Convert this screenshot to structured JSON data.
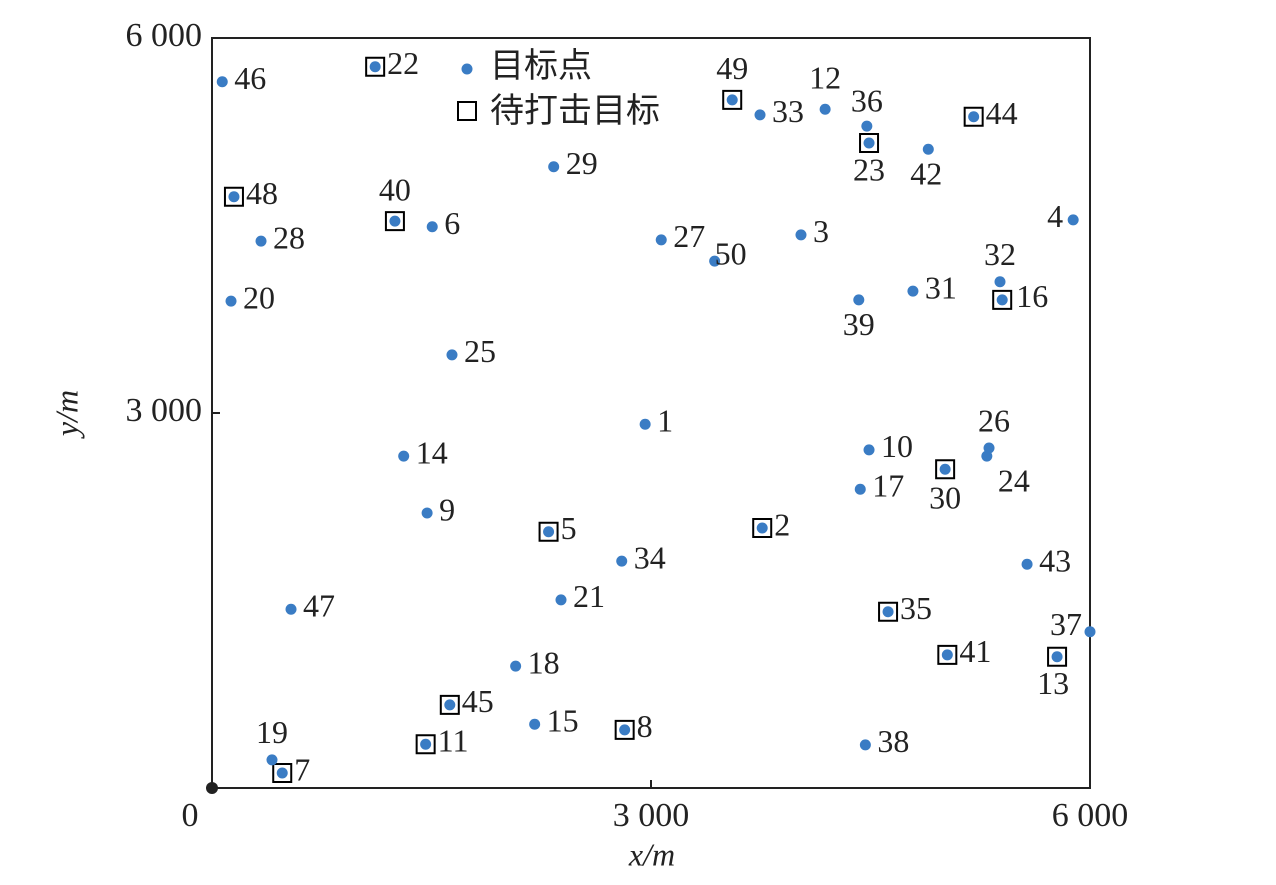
{
  "chart_data": {
    "type": "scatter",
    "xlabel": "x/m",
    "ylabel": "y/m",
    "xlim": [
      0,
      6000
    ],
    "ylim": [
      0,
      6000
    ],
    "xticks": [
      0,
      {
        "value": 3000,
        "label": "3 000"
      },
      {
        "value": 6000,
        "label": "6 000"
      }
    ],
    "yticks": [
      {
        "value": 3000,
        "label": "3 000"
      },
      {
        "value": 6000,
        "label": "6 000"
      }
    ],
    "grid": false,
    "legend": "top",
    "series": [
      {
        "name": "目标点",
        "color": "#3a7cc4",
        "marker": "dot",
        "labels": [
          "1",
          "2",
          "3",
          "4",
          "5",
          "6",
          "7",
          "8",
          "9",
          "10",
          "11",
          "12",
          "13",
          "14",
          "15",
          "16",
          "17",
          "18",
          "19",
          "20",
          "21",
          "22",
          "23",
          "24",
          "25",
          "26",
          "27",
          "28",
          "29",
          "30",
          "31",
          "32",
          "33",
          "34",
          "35",
          "36",
          "37",
          "38",
          "39",
          "40",
          "41",
          "42",
          "43",
          "44",
          "45",
          "46",
          "47",
          "48",
          "49",
          "50"
        ],
        "x": [
          2960,
          3760,
          4025,
          5885,
          2300,
          1505,
          480,
          2820,
          1470,
          4490,
          1460,
          4190,
          5775,
          1310,
          2205,
          5400,
          4430,
          2075,
          410,
          130,
          2385,
          1115,
          4490,
          5295,
          1640,
          5310,
          3070,
          335,
          2335,
          5010,
          4790,
          5385,
          3745,
          2800,
          4620,
          4475,
          6000,
          4465,
          4420,
          1250,
          5025,
          4895,
          5570,
          5205,
          1625,
          70,
          540,
          150,
          3555,
          3435
        ],
        "y": [
          2910,
          2080,
          4425,
          4545,
          2050,
          4490,
          120,
          465,
          2200,
          2705,
          350,
          5430,
          1050,
          2655,
          510,
          3905,
          2390,
          975,
          225,
          3895,
          1505,
          5770,
          5160,
          2655,
          3465,
          2720,
          4385,
          4375,
          4970,
          2550,
          3975,
          4050,
          5385,
          1815,
          1410,
          5295,
          1250,
          345,
          3905,
          4535,
          1065,
          5110,
          1790,
          5370,
          665,
          5650,
          1430,
          4730,
          5505,
          4215
        ]
      },
      {
        "name": "待打击目标",
        "color": "#000000",
        "marker": "square",
        "x": [
          3760,
          2300,
          480,
          2820,
          1460,
          5775,
          5400,
          1115,
          4490,
          5010,
          4620,
          1250,
          5025,
          5205,
          1625,
          150,
          3555
        ],
        "y": [
          2080,
          2050,
          120,
          465,
          350,
          1050,
          3905,
          5770,
          5160,
          2550,
          1410,
          4535,
          1065,
          5370,
          665,
          4730,
          5505
        ]
      }
    ]
  }
}
